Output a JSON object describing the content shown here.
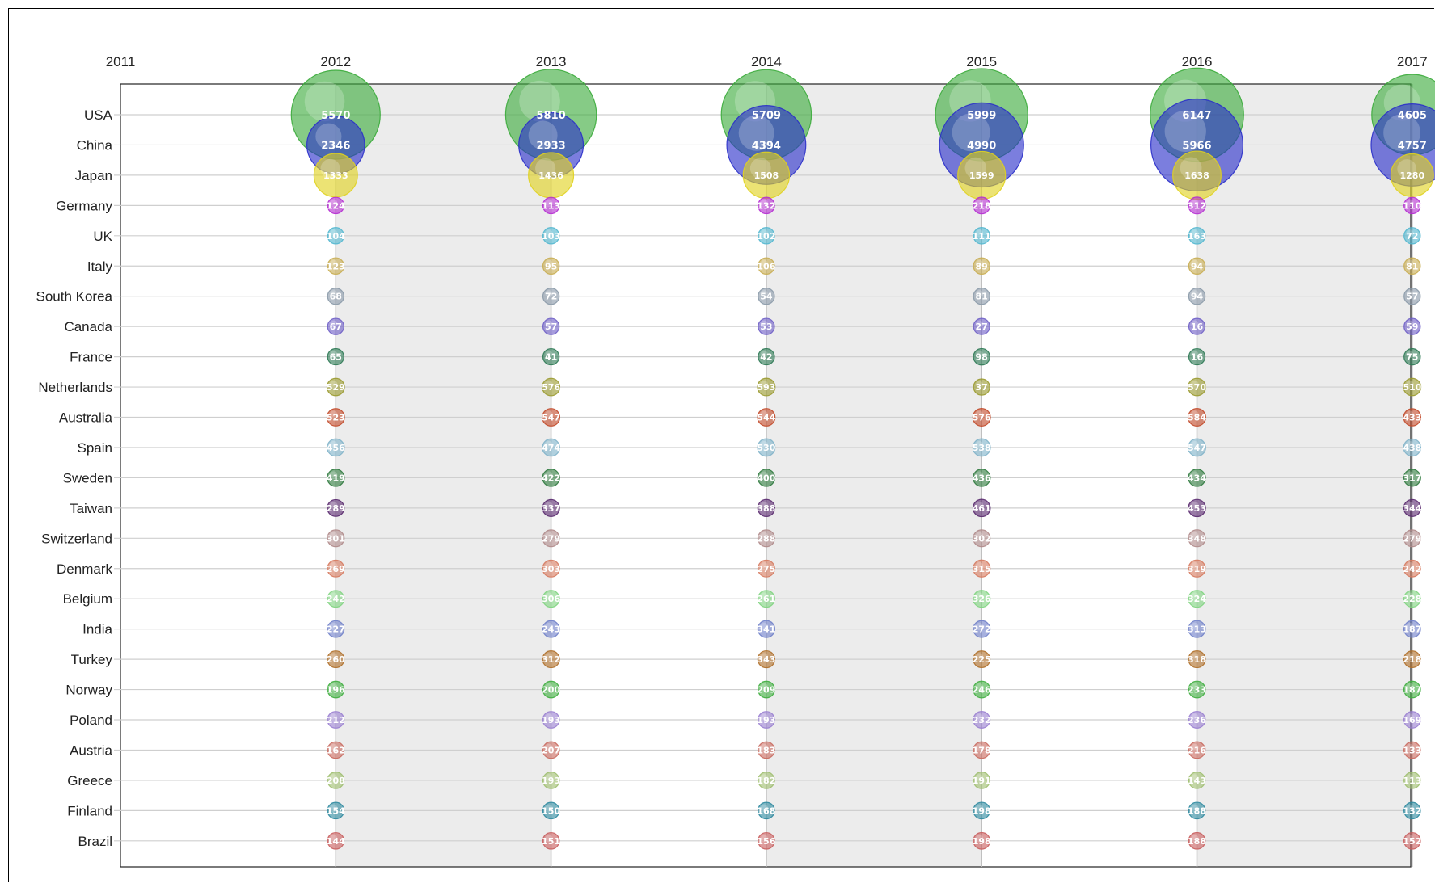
{
  "chart_data": {
    "type": "scatter",
    "subtype": "bubble",
    "x": [
      "2011",
      "2012",
      "2013",
      "2014",
      "2015",
      "2016",
      "2017"
    ],
    "categories": [
      "USA",
      "China",
      "Japan",
      "Germany",
      "UK",
      "Italy",
      "South Korea",
      "Canada",
      "France",
      "Netherlands",
      "Australia",
      "Spain",
      "Sweden",
      "Taiwan",
      "Switzerland",
      "Denmark",
      "Belgium",
      "India",
      "Turkey",
      "Norway",
      "Poland",
      "Austria",
      "Greece",
      "Finland",
      "Brazil"
    ],
    "grid": true,
    "legend": "none",
    "series": [
      {
        "color": "#3bab3b",
        "values": [
          null,
          5570,
          5810,
          5709,
          5999,
          6147,
          4605
        ]
      },
      {
        "color": "#2a2fc9",
        "values": [
          null,
          2346,
          2933,
          4394,
          4990,
          5966,
          4757
        ]
      },
      {
        "color": "#e0d21f",
        "values": [
          null,
          1333,
          1436,
          1508,
          1599,
          1638,
          1280
        ]
      },
      {
        "color": "#b52ed1",
        "values": [
          null,
          124,
          113,
          132,
          218,
          312,
          110
        ]
      },
      {
        "color": "#52b7cf",
        "values": [
          null,
          104,
          103,
          102,
          111,
          163,
          72
        ]
      },
      {
        "color": "#c8ad52",
        "values": [
          null,
          123,
          95,
          106,
          89,
          94,
          81
        ]
      },
      {
        "color": "#8b9aa9",
        "values": [
          null,
          68,
          72,
          54,
          81,
          94,
          57
        ]
      },
      {
        "color": "#6f5fc6",
        "values": [
          null,
          67,
          57,
          53,
          27,
          16,
          59
        ]
      },
      {
        "color": "#2f7a55",
        "values": [
          null,
          65,
          41,
          42,
          98,
          16,
          75
        ]
      },
      {
        "color": "#9a9a2f",
        "values": [
          null,
          529,
          576,
          593,
          37,
          570,
          510
        ]
      },
      {
        "color": "#c24a2a",
        "values": [
          null,
          523,
          547,
          544,
          576,
          584,
          433
        ]
      },
      {
        "color": "#7fb3c9",
        "values": [
          null,
          456,
          474,
          530,
          538,
          547,
          438
        ]
      },
      {
        "color": "#2f7a3e",
        "values": [
          null,
          419,
          422,
          400,
          436,
          434,
          317
        ]
      },
      {
        "color": "#5a2a6f",
        "values": [
          null,
          289,
          337,
          388,
          461,
          453,
          344
        ]
      },
      {
        "color": "#b08a8a",
        "values": [
          null,
          301,
          279,
          288,
          302,
          348,
          279
        ]
      },
      {
        "color": "#d67a5f",
        "values": [
          null,
          269,
          303,
          275,
          315,
          319,
          242
        ]
      },
      {
        "color": "#7fd47f",
        "values": [
          null,
          242,
          306,
          261,
          326,
          324,
          228
        ]
      },
      {
        "color": "#6f7fc9",
        "values": [
          null,
          227,
          243,
          341,
          272,
          313,
          187
        ]
      },
      {
        "color": "#b0702a",
        "values": [
          null,
          260,
          312,
          343,
          225,
          318,
          218
        ]
      },
      {
        "color": "#3fae3f",
        "values": [
          null,
          196,
          200,
          209,
          246,
          233,
          187
        ]
      },
      {
        "color": "#9a7fd1",
        "values": [
          null,
          212,
          193,
          193,
          232,
          236,
          169
        ]
      },
      {
        "color": "#c96a5f",
        "values": [
          null,
          162,
          207,
          183,
          178,
          216,
          133
        ]
      },
      {
        "color": "#9fbf6f",
        "values": [
          null,
          208,
          193,
          182,
          191,
          143,
          113
        ]
      },
      {
        "color": "#2f8aa0",
        "values": [
          null,
          154,
          150,
          168,
          198,
          188,
          132
        ]
      },
      {
        "color": "#c95f5f",
        "values": [
          null,
          144,
          151,
          156,
          198,
          188,
          152
        ]
      }
    ]
  }
}
